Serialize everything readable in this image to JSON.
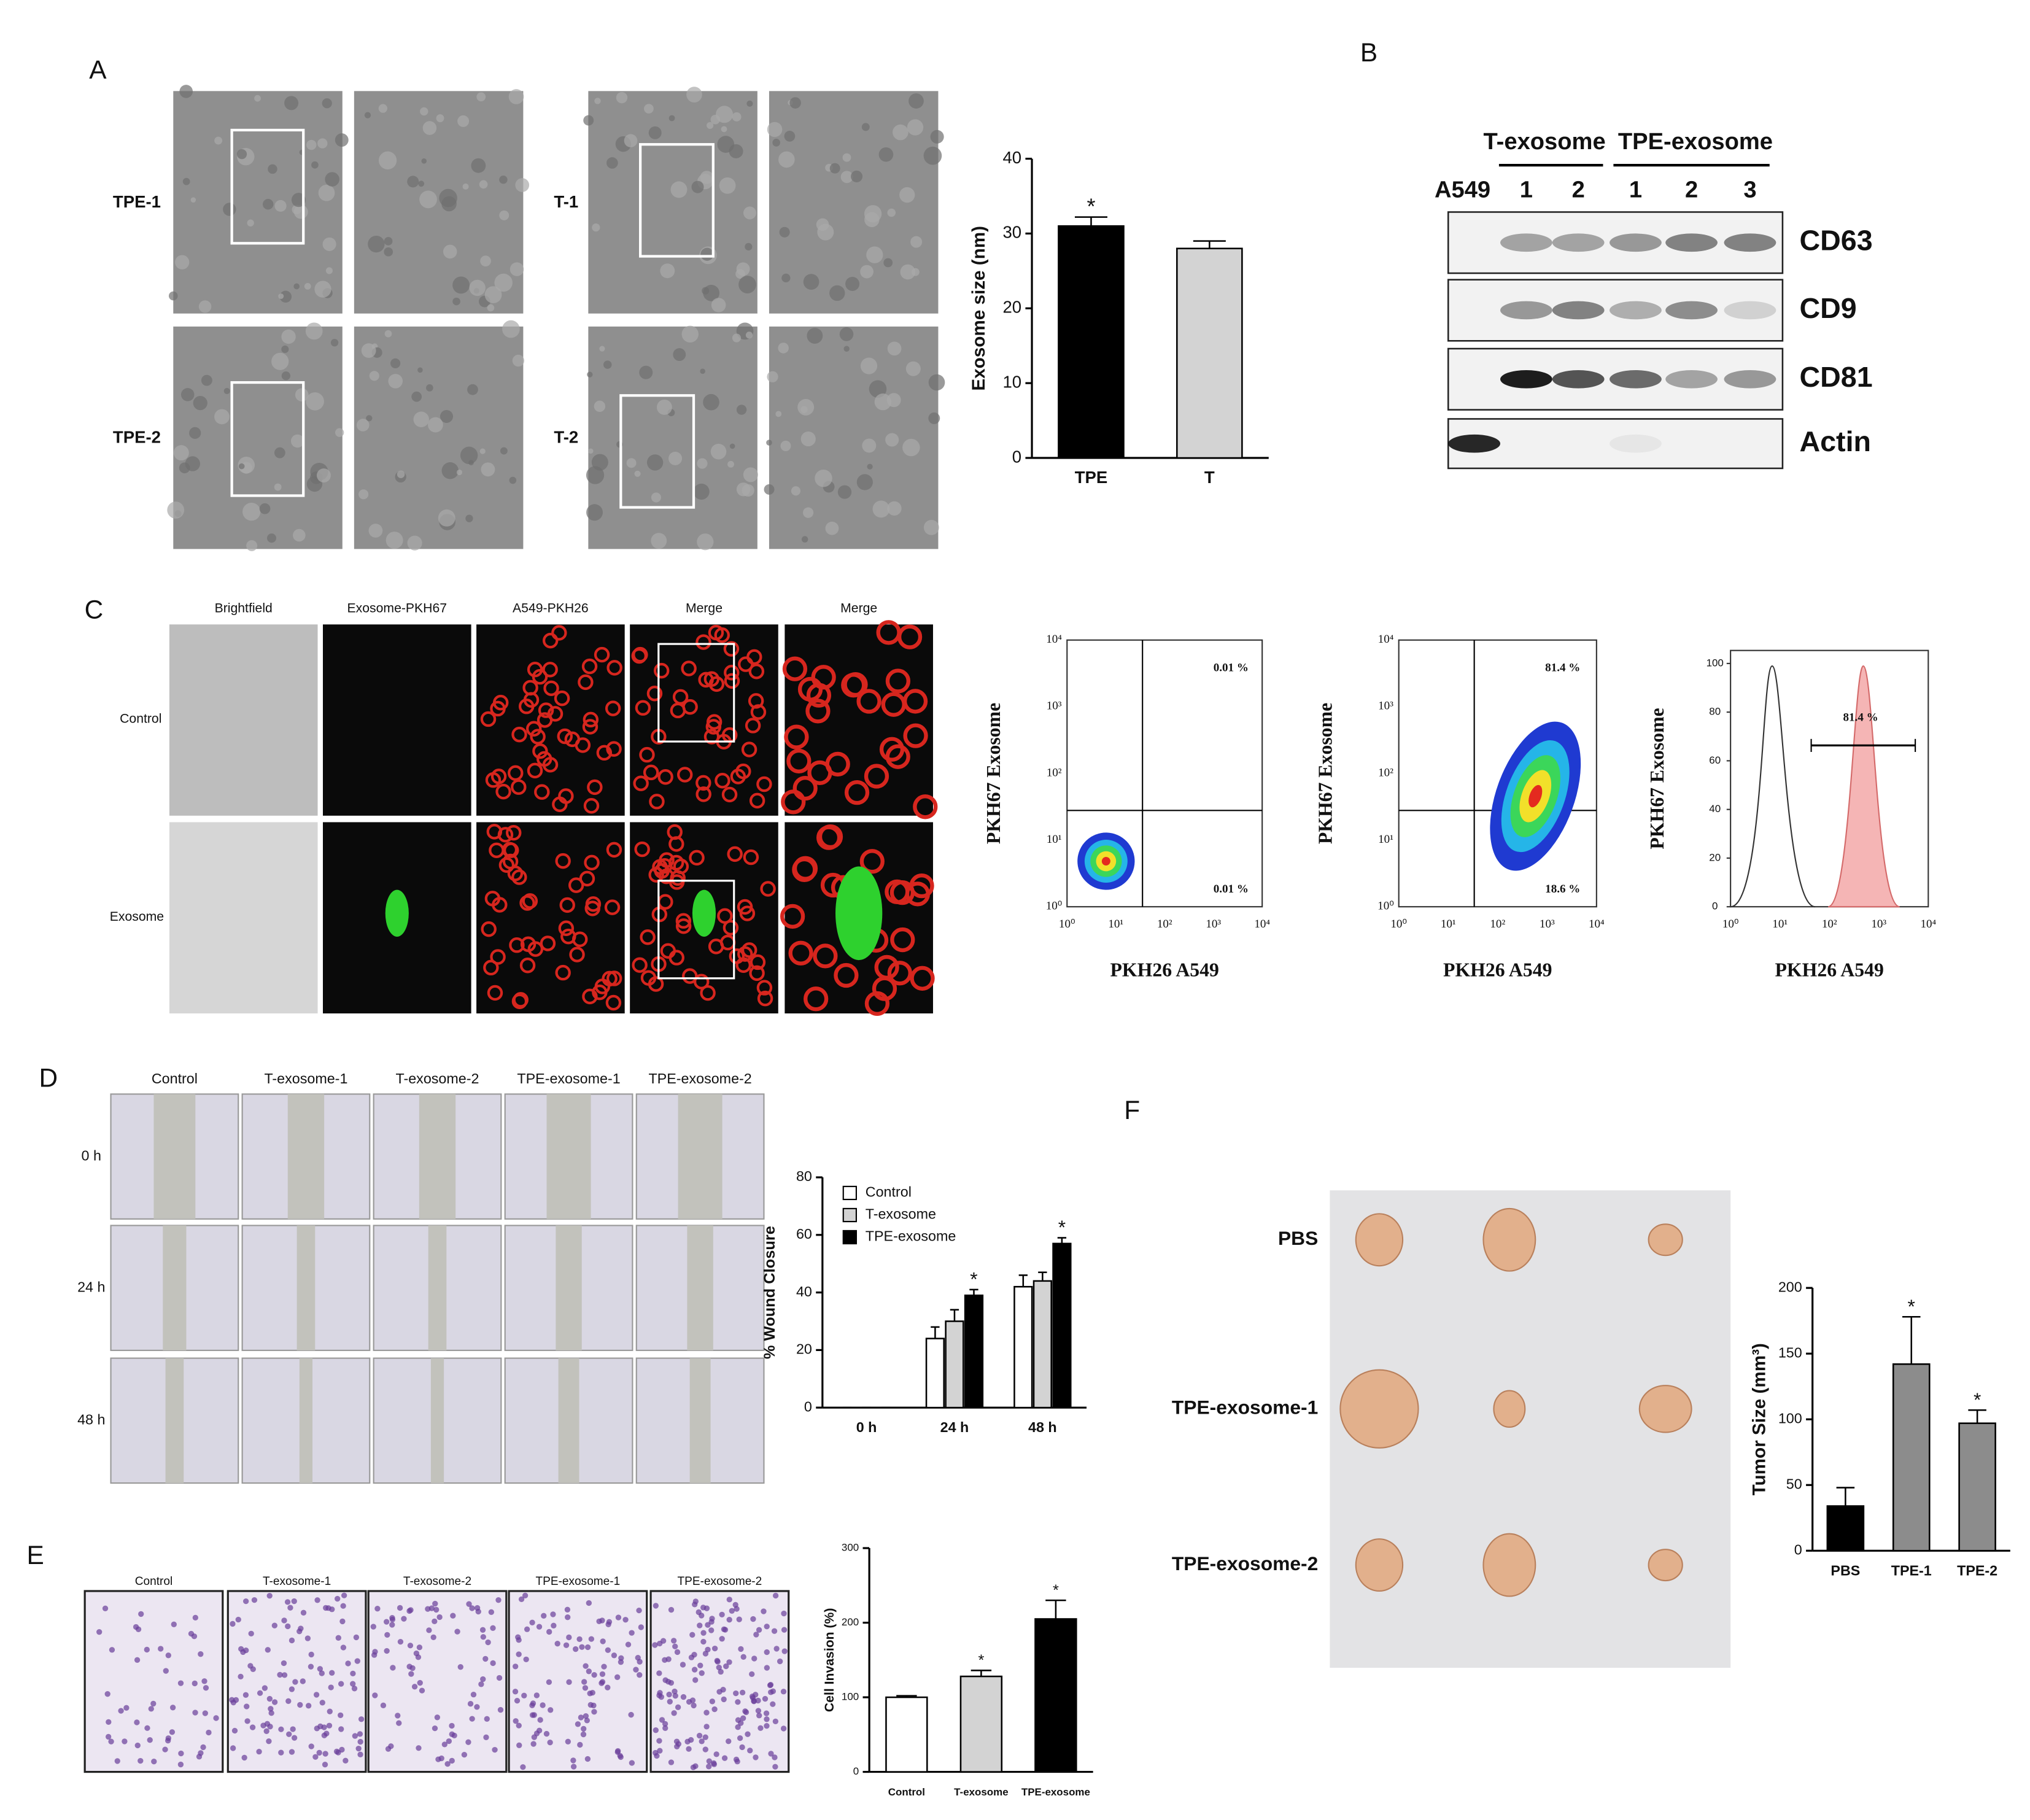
{
  "panel_labels": [
    "A",
    "B",
    "C",
    "D",
    "E",
    "F"
  ],
  "panel_a": {
    "row_labels_left": [
      "TPE-1",
      "TPE-2"
    ],
    "row_labels_right": [
      "T-1",
      "T-2"
    ]
  },
  "panel_b": {
    "sample_label": "A549",
    "groups": [
      "T-exosome",
      "TPE-exosome"
    ],
    "lanes": [
      "1",
      "2",
      "1",
      "2",
      "3"
    ],
    "markers": [
      "CD63",
      "CD9",
      "CD81",
      "Actin"
    ]
  },
  "panel_c": {
    "columns": [
      "Brightfield",
      "Exosome-PKH67",
      "A549-PKH26",
      "Merge",
      "Merge"
    ],
    "rows": [
      "Control",
      "Exosome"
    ],
    "flow": {
      "y_label": "PKH67 Exosome",
      "x_label": "PKH26 A549",
      "log_ticks": [
        "10⁰",
        "10¹",
        "10²",
        "10³",
        "10⁴"
      ],
      "plot1_percents": [
        "0.01 %",
        "0.01 %"
      ],
      "plot2_percents": [
        "81.4 %",
        "18.6 %"
      ],
      "histogram_percent": "81.4 %",
      "histogram_yticks": [
        0,
        20,
        40,
        60,
        80,
        100
      ]
    }
  },
  "panel_d": {
    "columns": [
      "Control",
      "T-exosome-1",
      "T-exosome-2",
      "TPE-exosome-1",
      "TPE-exosome-2"
    ],
    "rows": [
      "0 h",
      "24 h",
      "48 h"
    ]
  },
  "panel_e": {
    "columns": [
      "Control",
      "T-exosome-1",
      "T-exosome-2",
      "TPE-exosome-1",
      "TPE-exosome-2"
    ]
  },
  "panel_f": {
    "rows": [
      "PBS",
      "TPE-exosome-1",
      "TPE-exosome-2"
    ]
  },
  "chart_data": [
    {
      "type": "bar",
      "y_label": "Exosome size (nm)",
      "categories": [
        "TPE",
        "T"
      ],
      "values": [
        31,
        28
      ],
      "errors": [
        1.2,
        1
      ],
      "colors": [
        "#000000",
        "#d3d3d3"
      ],
      "ylim": [
        0,
        40
      ],
      "yticks": [
        0,
        10,
        20,
        30,
        40
      ],
      "significance": [
        {
          "index": 0,
          "text": "*"
        }
      ]
    },
    {
      "type": "bar",
      "y_label": "% Wound Closure",
      "categories": [
        "0 h",
        "24 h",
        "48 h"
      ],
      "series": [
        {
          "name": "Control",
          "color": "#ffffff",
          "values": [
            0,
            24,
            42
          ],
          "errors": [
            0,
            4,
            4
          ]
        },
        {
          "name": "T-exosome",
          "color": "#d3d3d3",
          "values": [
            0,
            30,
            44
          ],
          "errors": [
            0,
            4,
            3
          ]
        },
        {
          "name": "TPE-exosome",
          "color": "#000000",
          "values": [
            0,
            39,
            57
          ],
          "errors": [
            0,
            2,
            2
          ]
        }
      ],
      "ylim": [
        0,
        80
      ],
      "yticks": [
        0,
        20,
        40,
        60,
        80
      ],
      "significance": [
        {
          "series": 2,
          "index": 1,
          "text": "*"
        },
        {
          "series": 2,
          "index": 2,
          "text": "*"
        }
      ]
    },
    {
      "type": "bar",
      "y_label": "Cell Invasion (%)",
      "categories": [
        "Control",
        "T-exosome",
        "TPE-exosome"
      ],
      "values": [
        100,
        128,
        205
      ],
      "errors": [
        2,
        8,
        25
      ],
      "colors": [
        "#ffffff",
        "#d3d3d3",
        "#000000"
      ],
      "ylim": [
        0,
        300
      ],
      "yticks": [
        0,
        100,
        200,
        300
      ],
      "significance": [
        {
          "index": 1,
          "text": "*"
        },
        {
          "index": 2,
          "text": "*"
        }
      ]
    },
    {
      "type": "bar",
      "y_label": "Tumor Size (mm³)",
      "categories": [
        "PBS",
        "TPE-1",
        "TPE-2"
      ],
      "values": [
        34,
        142,
        97
      ],
      "errors": [
        14,
        36,
        10
      ],
      "colors": [
        "#000000",
        "#8c8c8c",
        "#8c8c8c"
      ],
      "ylim": [
        0,
        200
      ],
      "yticks": [
        0,
        50,
        100,
        150,
        200
      ],
      "significance": [
        {
          "index": 1,
          "text": "*"
        },
        {
          "index": 2,
          "text": "*"
        }
      ]
    }
  ]
}
